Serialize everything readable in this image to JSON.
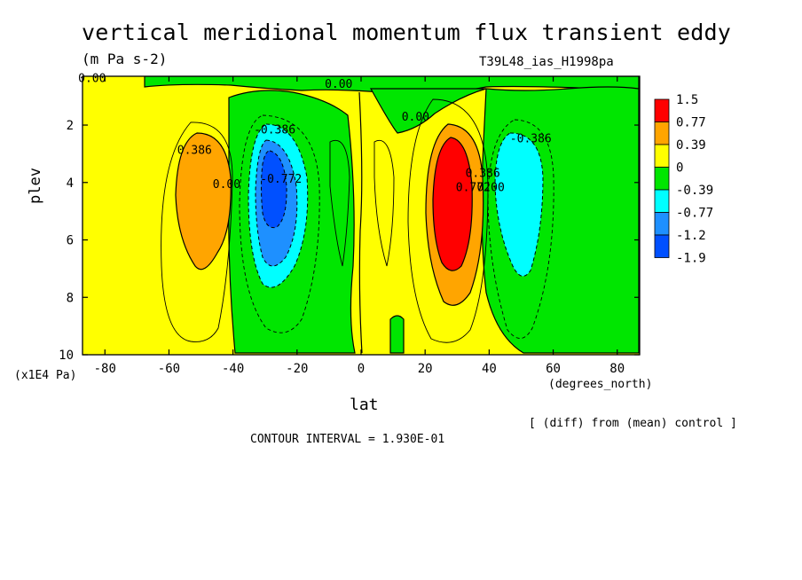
{
  "chart_data": {
    "type": "heatmap",
    "title": "vertical meridional momentum flux transient eddy",
    "units": "(m Pa s-2)",
    "experiment": "T39L48_ias_H1998pa",
    "xlabel": "lat",
    "xunits": "(degrees_north)",
    "ylabel": "plev",
    "yunits": "(x1E4 Pa)",
    "xlim": [
      -87,
      87
    ],
    "ylim": [
      10,
      0.3
    ],
    "xticks": [
      -80,
      -60,
      -40,
      -20,
      0,
      20,
      40,
      60,
      80
    ],
    "yticks": [
      2,
      4,
      6,
      8,
      10
    ],
    "note": "[ (diff) from (mean) control ]",
    "contour_interval": "CONTOUR INTERVAL = 1.930E-01",
    "colorbar": [
      {
        "label": "1.5",
        "color": "#ff0000"
      },
      {
        "label": "0.77",
        "color": "#ffa500"
      },
      {
        "label": "0.39",
        "color": "#ffff00"
      },
      {
        "label": "0",
        "color": "#00e600"
      },
      {
        "label": "-0.39",
        "color": "#00ffff"
      },
      {
        "label": "-0.77",
        "color": "#1e90ff"
      },
      {
        "label": "-1.2",
        "color": "#0050ff"
      },
      {
        "label": "-1.9",
        "color": ""
      }
    ],
    "contour_labels": [
      {
        "text": "0.00",
        "lat": -84,
        "plev": 0.5
      },
      {
        "text": "0.00",
        "lat": -7,
        "plev": 0.7
      },
      {
        "text": "0.00",
        "lat": 17,
        "plev": 1.85
      },
      {
        "text": "0.386",
        "lat": -52,
        "plev": 3.0
      },
      {
        "text": "0.00",
        "lat": -42,
        "plev": 4.2
      },
      {
        "text": "-0.386",
        "lat": -27,
        "plev": 2.3
      },
      {
        "text": "-0.772",
        "lat": -25,
        "plev": 4.0
      },
      {
        "text": "0.772",
        "lat": 35,
        "plev": 4.3
      },
      {
        "text": "0.386",
        "lat": 38,
        "plev": 3.8
      },
      {
        "text": "0.00",
        "lat": 40.5,
        "plev": 4.3
      },
      {
        "text": "-0.386",
        "lat": 53,
        "plev": 2.6
      }
    ]
  }
}
